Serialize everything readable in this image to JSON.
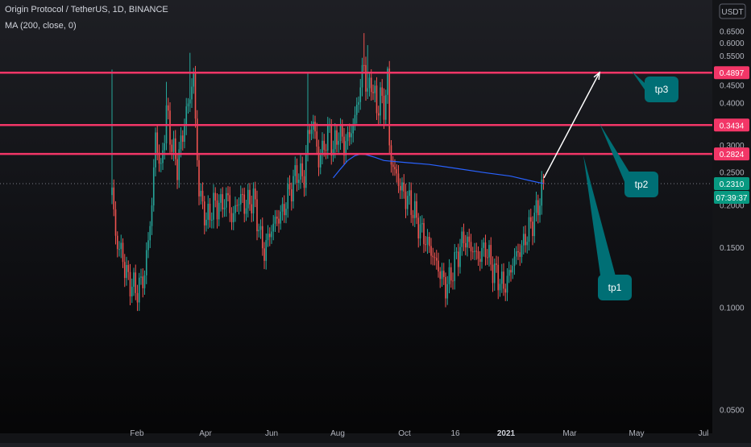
{
  "header": {
    "title": "Origin Protocol / TetherUS, 1D, BINANCE",
    "indicator": "MA (200, close, 0)",
    "currency": "USDT"
  },
  "chart_data": {
    "type": "candlestick",
    "symbol": "Origin Protocol / TetherUS",
    "timeframe": "1D",
    "exchange": "BINANCE",
    "yscale": "log",
    "ylim": [
      0.048,
      0.68
    ],
    "y_ticks": [
      "0.6500",
      "0.6000",
      "0.5500",
      "0.5000",
      "0.4500",
      "0.4000",
      "0.3500",
      "0.3000",
      "0.2500",
      "0.2000",
      "0.1500",
      "0.1000",
      "0.0500"
    ],
    "x_ticks": [
      "Feb",
      "Apr",
      "Jun",
      "Aug",
      "Oct",
      "16",
      "2021",
      "Mar",
      "May",
      "Jul"
    ],
    "price_path": [
      [
        0,
        0.225
      ],
      [
        2,
        0.16
      ],
      [
        5,
        0.145
      ],
      [
        9,
        0.12
      ],
      [
        14,
        0.112
      ],
      [
        18,
        0.125
      ],
      [
        22,
        0.2
      ],
      [
        24,
        0.32
      ],
      [
        27,
        0.25
      ],
      [
        30,
        0.38
      ],
      [
        33,
        0.3
      ],
      [
        36,
        0.26
      ],
      [
        40,
        0.35
      ],
      [
        43,
        0.42
      ],
      [
        45,
        0.48
      ],
      [
        46,
        0.35
      ],
      [
        48,
        0.22
      ],
      [
        52,
        0.18
      ],
      [
        56,
        0.2
      ],
      [
        60,
        0.2
      ],
      [
        64,
        0.21
      ],
      [
        66,
        0.18
      ],
      [
        70,
        0.21
      ],
      [
        74,
        0.2
      ],
      [
        78,
        0.21
      ],
      [
        82,
        0.16
      ],
      [
        84,
        0.145
      ],
      [
        86,
        0.16
      ],
      [
        90,
        0.18
      ],
      [
        94,
        0.19
      ],
      [
        98,
        0.22
      ],
      [
        102,
        0.25
      ],
      [
        106,
        0.24
      ],
      [
        108,
        0.32
      ],
      [
        111,
        0.35
      ],
      [
        114,
        0.27
      ],
      [
        117,
        0.3
      ],
      [
        120,
        0.33
      ],
      [
        122,
        0.29
      ],
      [
        125,
        0.33
      ],
      [
        128,
        0.3
      ],
      [
        131,
        0.32
      ],
      [
        134,
        0.36
      ],
      [
        137,
        0.45
      ],
      [
        139,
        0.52
      ],
      [
        141,
        0.42
      ],
      [
        143,
        0.47
      ],
      [
        146,
        0.38
      ],
      [
        148,
        0.42
      ],
      [
        150,
        0.38
      ],
      [
        152,
        0.48
      ],
      [
        153,
        0.3
      ],
      [
        154,
        0.27
      ],
      [
        156,
        0.25
      ],
      [
        160,
        0.22
      ],
      [
        165,
        0.2
      ],
      [
        170,
        0.17
      ],
      [
        175,
        0.15
      ],
      [
        180,
        0.13
      ],
      [
        184,
        0.115
      ],
      [
        186,
        0.12
      ],
      [
        190,
        0.14
      ],
      [
        194,
        0.16
      ],
      [
        198,
        0.15
      ],
      [
        202,
        0.14
      ],
      [
        206,
        0.15
      ],
      [
        210,
        0.13
      ],
      [
        214,
        0.12
      ],
      [
        216,
        0.115
      ],
      [
        218,
        0.12
      ],
      [
        222,
        0.14
      ],
      [
        226,
        0.15
      ],
      [
        230,
        0.17
      ],
      [
        234,
        0.19
      ],
      [
        237,
        0.22
      ],
      [
        238,
        0.231
      ]
    ],
    "wick_highs": [
      {
        "i": 0,
        "price": 0.5
      },
      {
        "i": 30,
        "price": 0.46
      },
      {
        "i": 43,
        "price": 0.56
      },
      {
        "i": 108,
        "price": 0.49
      },
      {
        "i": 139,
        "price": 0.64
      },
      {
        "i": 141,
        "price": 0.59
      },
      {
        "i": 152,
        "price": 0.51
      }
    ],
    "moving_average": {
      "name": "MA (200, close, 0)",
      "color": "#2962ff",
      "points": [
        [
          122,
          0.24
        ],
        [
          126,
          0.255
        ],
        [
          130,
          0.27
        ],
        [
          134,
          0.279
        ],
        [
          137,
          0.282
        ],
        [
          140,
          0.281
        ],
        [
          145,
          0.276
        ],
        [
          150,
          0.27
        ],
        [
          160,
          0.267
        ],
        [
          175,
          0.263
        ],
        [
          190,
          0.256
        ],
        [
          205,
          0.249
        ],
        [
          220,
          0.243
        ],
        [
          230,
          0.236
        ],
        [
          238,
          0.231
        ]
      ]
    },
    "horizontal_levels": [
      {
        "price": 0.4897,
        "label": "0.4897"
      },
      {
        "price": 0.3434,
        "label": "0.3434"
      },
      {
        "price": 0.2824,
        "label": "0.2824"
      }
    ],
    "current_price": {
      "value": 0.231,
      "label": "0.2310",
      "countdown": "07:39:37"
    },
    "targets": [
      {
        "label": "tp1",
        "price": 0.2824,
        "bubble": "below"
      },
      {
        "label": "tp2",
        "price": 0.3434,
        "bubble": "above"
      },
      {
        "label": "tp3",
        "price": 0.4897,
        "bubble": "above"
      }
    ],
    "projection_arrow": {
      "from_price": 0.24,
      "to_price": 0.49
    }
  },
  "colors": {
    "up": "#26a69a",
    "down": "#ef5350",
    "level": "#f23667",
    "callout": "#006f75",
    "callout_text": "#ffffff",
    "axis_text": "#b2b5be",
    "ma": "#2962ff",
    "current_price_bg": "#089981"
  }
}
